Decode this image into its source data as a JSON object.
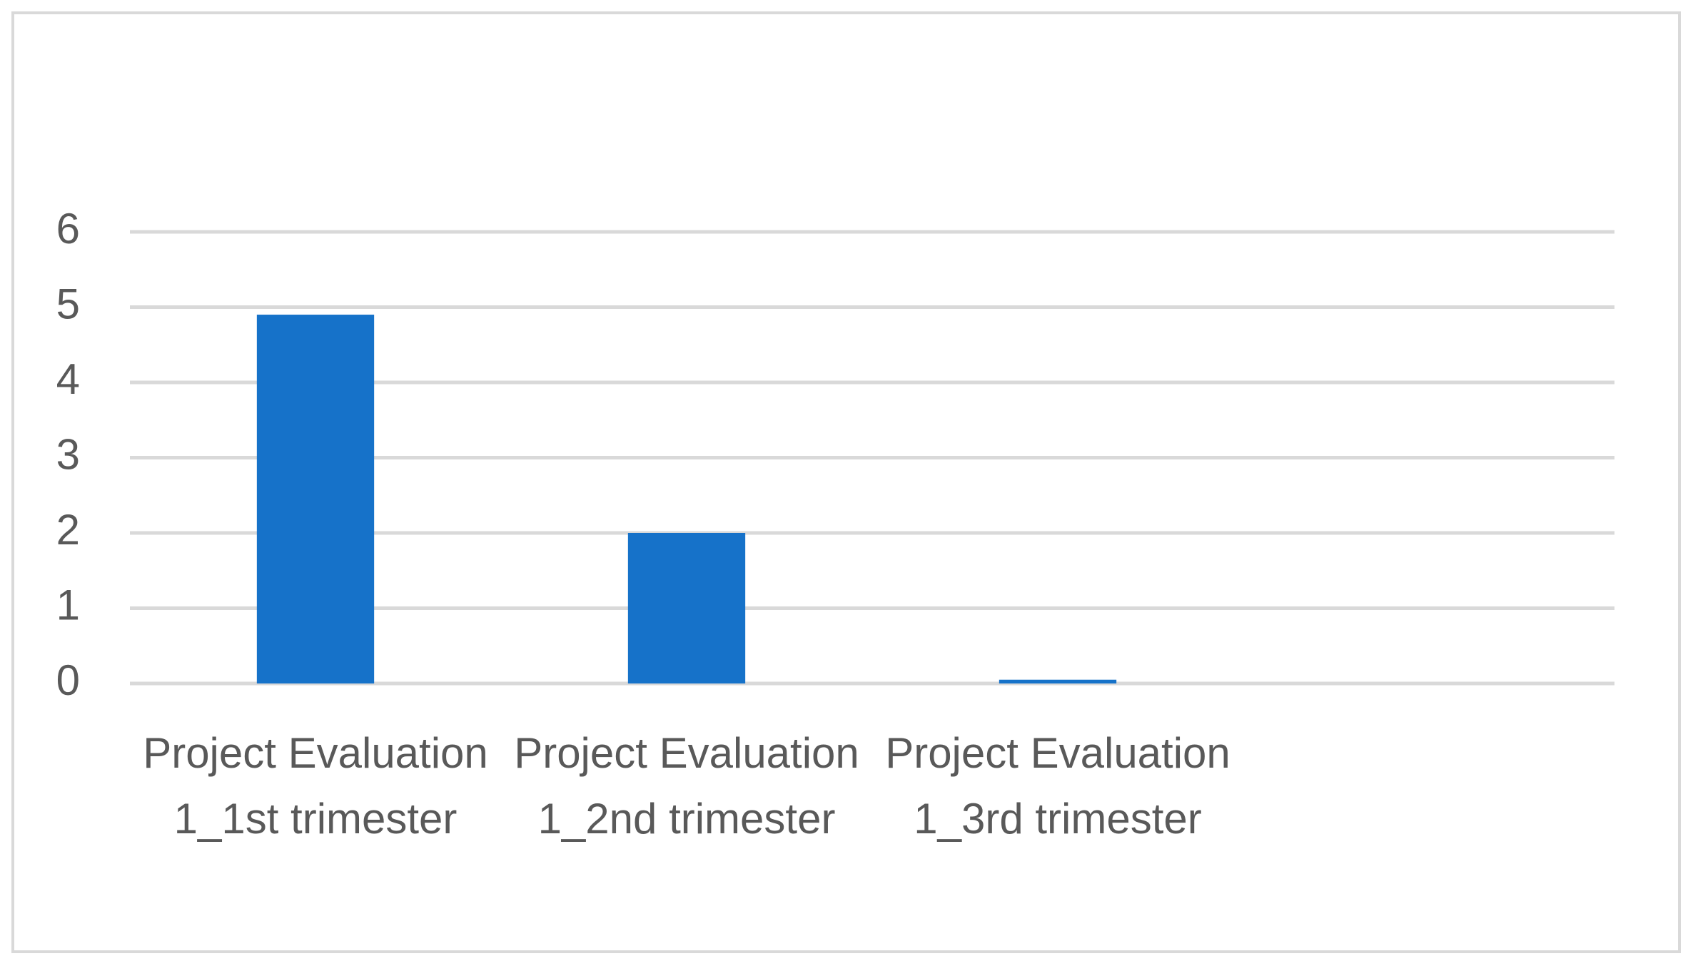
{
  "chart_data": {
    "type": "bar",
    "categories": [
      "Project Evaluation 1_1st trimester",
      "Project Evaluation 1_2nd trimester",
      "Project Evaluation 1_3rd trimester",
      null
    ],
    "values": [
      4.9,
      2,
      0.05,
      null
    ],
    "color": "#1672c9",
    "ylim": [
      0,
      6
    ],
    "yticks": [
      0,
      1,
      2,
      3,
      4,
      5,
      6
    ],
    "grid": true
  }
}
